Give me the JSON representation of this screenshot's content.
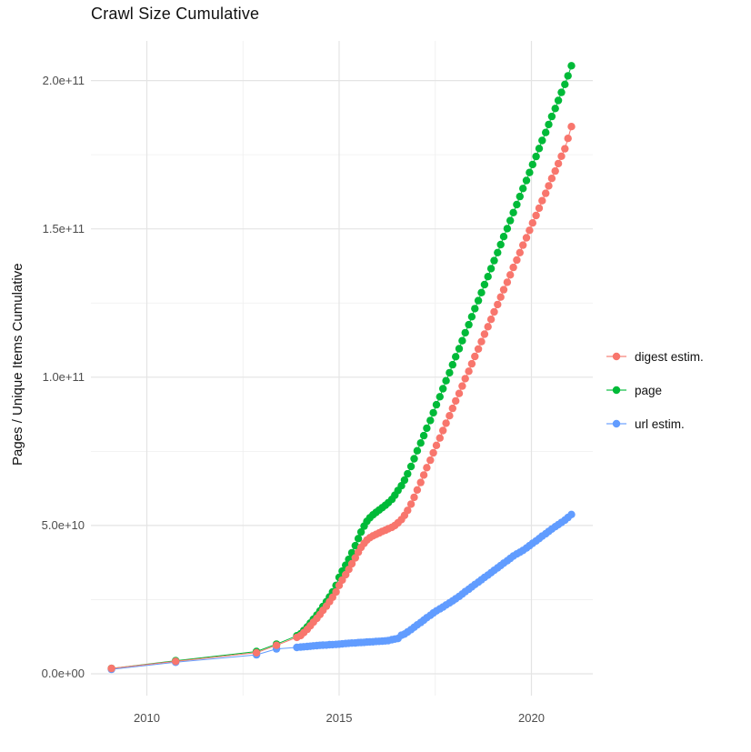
{
  "title": "Crawl Size Cumulative",
  "axes": {
    "y_title": "Pages / Unique Items Cumulative",
    "y_ticks": [
      {
        "label": "0.0e+00",
        "value": 0
      },
      {
        "label": "5.0e+10",
        "value": 50
      },
      {
        "label": "1.0e+11",
        "value": 100
      },
      {
        "label": "1.5e+11",
        "value": 150
      },
      {
        "label": "2.0e+11",
        "value": 200
      }
    ],
    "x_ticks": [
      {
        "label": "2010",
        "value": 2010
      },
      {
        "label": "2015",
        "value": 2015
      },
      {
        "label": "2020",
        "value": 2020
      }
    ]
  },
  "legend": {
    "items": [
      {
        "label": "digest estim.",
        "color": "#F8766D"
      },
      {
        "label": "page",
        "color": "#00BA38"
      },
      {
        "label": "url estim.",
        "color": "#619CFF"
      }
    ]
  },
  "chart_data": {
    "type": "scatter",
    "title": "Crawl Size Cumulative",
    "xlabel": "",
    "ylabel": "Pages / Unique Items Cumulative",
    "x_unit": "year (decimal, one point per crawl)",
    "y_unit": "items, values listed in billions (multiply by 1e9)",
    "xlim": [
      2008.55,
      2021.65
    ],
    "ylim_billions": [
      -7,
      214
    ],
    "grid": true,
    "x_minor_gridlines": [
      2012.5,
      2017.5
    ],
    "y_minor_gridlines_billions": [
      25,
      75,
      125,
      175
    ],
    "legend_position": "right",
    "marker": "point-with-line",
    "x": [
      2009.08,
      2010.75,
      2012.85,
      2013.37,
      2013.9,
      2014,
      2014.08,
      2014.17,
      2014.25,
      2014.33,
      2014.42,
      2014.5,
      2014.58,
      2014.67,
      2014.75,
      2014.83,
      2014.92,
      2015,
      2015.08,
      2015.17,
      2015.25,
      2015.33,
      2015.42,
      2015.5,
      2015.57,
      2015.65,
      2015.72,
      2015.8,
      2015.88,
      2015.96,
      2016.04,
      2016.12,
      2016.2,
      2016.28,
      2016.37,
      2016.45,
      2016.53,
      2016.62,
      2016.7,
      2016.78,
      2016.87,
      2016.95,
      2017.03,
      2017.12,
      2017.2,
      2017.28,
      2017.37,
      2017.45,
      2017.53,
      2017.62,
      2017.7,
      2017.78,
      2017.87,
      2017.95,
      2018.03,
      2018.12,
      2018.2,
      2018.28,
      2018.37,
      2018.45,
      2018.53,
      2018.62,
      2018.7,
      2018.78,
      2018.87,
      2018.95,
      2019.03,
      2019.12,
      2019.2,
      2019.28,
      2019.37,
      2019.45,
      2019.53,
      2019.62,
      2019.7,
      2019.78,
      2019.87,
      2019.95,
      2020.03,
      2020.12,
      2020.2,
      2020.28,
      2020.37,
      2020.45,
      2020.53,
      2020.62,
      2020.7,
      2020.78,
      2020.87,
      2020.95,
      2021.04
    ],
    "series": [
      {
        "name": "digest estim.",
        "color": "#F8766D",
        "y_billions": [
          1.8,
          4.2,
          7.1,
          9.6,
          12.3,
          12.9,
          13.9,
          15,
          16.2,
          17.4,
          18.7,
          20,
          21.4,
          22.8,
          24.3,
          25.8,
          27.6,
          29.8,
          31.6,
          33.4,
          35.2,
          37.1,
          39.1,
          41,
          42.6,
          44,
          45.1,
          45.9,
          46.5,
          47,
          47.5,
          48,
          48.4,
          48.9,
          49.4,
          50,
          50.9,
          52,
          53.4,
          55.1,
          57.2,
          59.5,
          62,
          64.5,
          67,
          69.5,
          72,
          74.5,
          77,
          79.5,
          82,
          84.5,
          87,
          89.5,
          92,
          94.5,
          97,
          99.5,
          102,
          104.5,
          107,
          109.5,
          112,
          114.5,
          117,
          119.5,
          122,
          124.5,
          127,
          129.5,
          132,
          134.5,
          137,
          139.5,
          142,
          144.5,
          147,
          149.5,
          152,
          154.5,
          157,
          159.5,
          162,
          164.5,
          167,
          169.5,
          172,
          174.5,
          177,
          180.5,
          184.5
        ]
      },
      {
        "name": "page",
        "color": "#00BA38",
        "y_billions": [
          1.8,
          4.4,
          7.5,
          10,
          12.8,
          13.5,
          14.6,
          15.8,
          17.1,
          18.4,
          19.8,
          21.2,
          22.7,
          24.3,
          25.9,
          27.6,
          29.8,
          32.5,
          34.6,
          36.6,
          38.6,
          40.8,
          43.2,
          45.6,
          47.8,
          49.8,
          51.4,
          52.6,
          53.6,
          54.4,
          55.2,
          56,
          56.8,
          57.7,
          58.8,
          60.2,
          61.8,
          63.4,
          65.3,
          67.4,
          69.9,
          72.5,
          75.2,
          77.8,
          80.3,
          82.8,
          85.4,
          88,
          90.7,
          93.4,
          96.1,
          98.8,
          101.5,
          104.2,
          106.9,
          109.6,
          112.3,
          115,
          117.7,
          120.4,
          123.1,
          125.8,
          128.5,
          131.2,
          133.9,
          136.6,
          139.3,
          142,
          144.7,
          147.4,
          150.1,
          152.8,
          155.5,
          158.2,
          160.9,
          163.6,
          166.3,
          169,
          171.7,
          174.4,
          177.1,
          179.8,
          182.5,
          185.2,
          187.9,
          190.6,
          193.3,
          196,
          198.7,
          201.6,
          205
        ]
      },
      {
        "name": "url estim.",
        "color": "#619CFF",
        "y_billions": [
          1.5,
          3.9,
          6.4,
          8.4,
          8.9,
          9,
          9.1,
          9.2,
          9.3,
          9.4,
          9.5,
          9.6,
          9.65,
          9.7,
          9.8,
          9.85,
          9.9,
          10,
          10.1,
          10.2,
          10.3,
          10.35,
          10.4,
          10.5,
          10.55,
          10.6,
          10.7,
          10.75,
          10.8,
          10.9,
          10.95,
          11,
          11.1,
          11.2,
          11.5,
          11.7,
          11.9,
          13,
          13.4,
          14.1,
          14.9,
          15.7,
          16.5,
          17.3,
          18.1,
          18.9,
          19.7,
          20.5,
          21.2,
          21.9,
          22.5,
          23.2,
          23.9,
          24.6,
          25.3,
          26.1,
          26.9,
          27.7,
          28.5,
          29.3,
          30.1,
          30.9,
          31.7,
          32.5,
          33.3,
          34.1,
          34.9,
          35.7,
          36.5,
          37.3,
          38.1,
          38.9,
          39.7,
          40.4,
          41,
          41.6,
          42.4,
          43.2,
          44,
          44.8,
          45.6,
          46.4,
          47.2,
          48,
          48.8,
          49.6,
          50.3,
          51,
          51.8,
          52.7,
          53.7
        ]
      }
    ]
  },
  "style": {
    "grid_major_color": "#e4e4e4",
    "grid_minor_color": "#efefef",
    "background": "#ffffff"
  }
}
